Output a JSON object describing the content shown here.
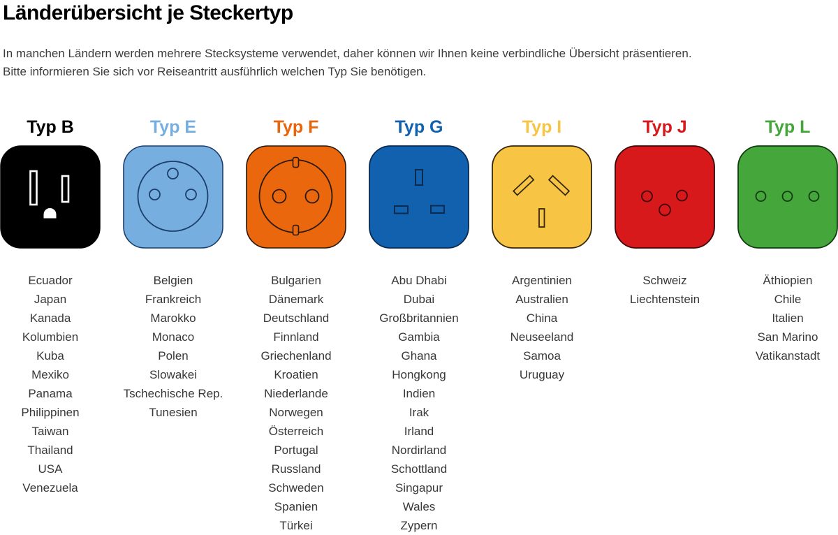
{
  "page": {
    "title": "Länderübersicht je Steckertyp",
    "intro": {
      "line1": "In manchen Ländern werden mehrere Stecksysteme verwendet, daher können wir Ihnen keine verbindliche Übersicht präsentieren.",
      "line2": "Bitte informieren Sie sich vor Reiseantritt ausführlich welchen Typ Sie benötigen."
    }
  },
  "plug_types": [
    {
      "id": "typ-b",
      "label": "Typ B",
      "label_color": "#000000",
      "socket_color": "#000000",
      "outline_color": "#000000",
      "pin_color": "#ffffff",
      "icon": "socket-type-b-icon",
      "countries": [
        "Ecuador",
        "Japan",
        "Kanada",
        "Kolumbien",
        "Kuba",
        "Mexiko",
        "Panama",
        "Philippinen",
        "Taiwan",
        "Thailand",
        "USA",
        "Venezuela"
      ]
    },
    {
      "id": "typ-e",
      "label": "Typ E",
      "label_color": "#77AEE0",
      "socket_color": "#77AEE0",
      "outline_color": "#1C3E6B",
      "icon": "socket-type-e-icon",
      "countries": [
        "Belgien",
        "Frankreich",
        "Marokko",
        "Monaco",
        "Polen",
        "Slowakei",
        "Tschechische Rep.",
        "Tunesien"
      ]
    },
    {
      "id": "typ-f",
      "label": "Typ F",
      "label_color": "#EA640C",
      "socket_color": "#EA670D",
      "outline_color": "#26190D",
      "icon": "socket-type-f-icon",
      "countries": [
        "Bulgarien",
        "Dänemark",
        "Deutschland",
        "Finnland",
        "Griechenland",
        "Kroatien",
        "Niederlande",
        "Norwegen",
        "Österreich",
        "Portugal",
        "Russland",
        "Schweden",
        "Spanien",
        "Türkei"
      ]
    },
    {
      "id": "typ-g",
      "label": "Typ G",
      "label_color": "#1161AF",
      "socket_color": "#1161AF",
      "outline_color": "#0A2A4E",
      "icon": "socket-type-g-icon",
      "countries": [
        "Abu Dhabi",
        "Dubai",
        "Großbritannien",
        "Gambia",
        "Ghana",
        "Hongkong",
        "Indien",
        "Irak",
        "Irland",
        "Nordirland",
        "Schottland",
        "Singapur",
        "Wales",
        "Zypern"
      ]
    },
    {
      "id": "typ-i",
      "label": "Typ I",
      "label_color": "#F7C444",
      "socket_color": "#F7C444",
      "outline_color": "#33270C",
      "icon": "socket-type-i-icon",
      "countries": [
        "Argentinien",
        "Australien",
        "China",
        "Neuseeland",
        "Samoa",
        "Uruguay"
      ]
    },
    {
      "id": "typ-j",
      "label": "Typ J",
      "label_color": "#D7191C",
      "socket_color": "#D7191C",
      "outline_color": "#3D0708",
      "icon": "socket-type-j-icon",
      "countries": [
        "Schweiz",
        "Liechtenstein"
      ]
    },
    {
      "id": "typ-l",
      "label": "Typ L",
      "label_color": "#44A63B",
      "socket_color": "#44A63B",
      "outline_color": "#123B10",
      "icon": "socket-type-l-icon",
      "countries": [
        "Äthiopien",
        "Chile",
        "Italien",
        "San Marino",
        "Vatikanstadt"
      ]
    }
  ]
}
